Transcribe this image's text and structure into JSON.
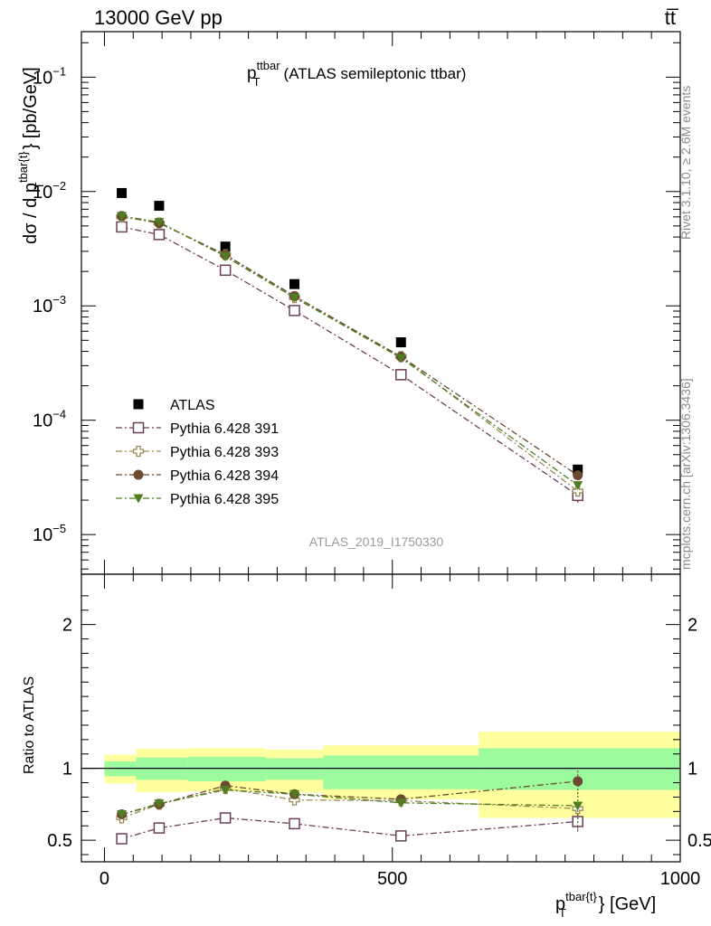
{
  "header": {
    "left": "13000 GeV pp",
    "right": "tt̅"
  },
  "side_labels": {
    "rivet": "Rivet 3.1.10, ≥ 2.6M events",
    "mcplots": "mcplots.cern.ch [arXiv:1306.3436]"
  },
  "chart_data": [
    {
      "type": "scatter",
      "panel": "main",
      "title_main": "p",
      "title_sup": "ttbar",
      "title_sub": "T",
      "title_rest": "(ATLAS semileptonic ttbar)",
      "ylabel": "dσ / d p_T^{tbar{t}} [pb/GeV]",
      "ylabel_main": "dσ / d p",
      "ylabel_sup": "tbar{t}",
      "ylabel_sub": "T",
      "ylabel_unit": "} [pb/GeV]",
      "yscale": "log",
      "ylim": [
        4.5e-06,
        0.25
      ],
      "xlim": [
        -40,
        1000
      ],
      "watermark": "ATLAS_2019_I1750330",
      "y_ticks": [
        {
          "value": 0.1,
          "mant": "10",
          "exp": "−1"
        },
        {
          "value": 0.01,
          "mant": "10",
          "exp": "−2"
        },
        {
          "value": 0.001,
          "mant": "10",
          "exp": "−3"
        },
        {
          "value": 0.0001,
          "mant": "10",
          "exp": "−4"
        },
        {
          "value": 1e-05,
          "mant": "10",
          "exp": "−5"
        }
      ],
      "x": [
        30,
        95,
        210,
        330,
        515,
        822
      ],
      "series": [
        {
          "name": "ATLAS",
          "marker": "square-filled",
          "color": "#000000",
          "line": false,
          "values": [
            0.0097,
            0.0075,
            0.0033,
            0.00155,
            0.00048,
            3.7e-05
          ]
        },
        {
          "name": "Pythia 6.428 391",
          "marker": "square-open",
          "color": "#6b3f57",
          "line": true,
          "values": [
            0.0049,
            0.0042,
            0.00205,
            0.00091,
            0.00025,
            2.2e-05
          ],
          "err_low": [
            0,
            0,
            0,
            0,
            0,
            3e-06
          ],
          "err_high": [
            0,
            0,
            0,
            0,
            0,
            3e-06
          ]
        },
        {
          "name": "Pythia 6.428 393",
          "marker": "cross-open",
          "color": "#9a8a55",
          "line": true,
          "values": [
            0.006,
            0.0053,
            0.0028,
            0.00118,
            0.00036,
            2.4e-05
          ]
        },
        {
          "name": "Pythia 6.428 394",
          "marker": "circle-filled",
          "color": "#6b4a30",
          "line": true,
          "values": [
            0.0061,
            0.0053,
            0.0028,
            0.00122,
            0.00036,
            3.3e-05
          ]
        },
        {
          "name": "Pythia 6.428 395",
          "marker": "triangle-down-filled",
          "color": "#4e7d22",
          "line": true,
          "values": [
            0.0061,
            0.0054,
            0.0027,
            0.00118,
            0.00035,
            2.7e-05
          ]
        }
      ]
    },
    {
      "type": "scatter",
      "panel": "ratio",
      "ylabel": "Ratio to ATLAS",
      "xlabel": "p_T^{tbar{t}} [GeV]",
      "xlabel_main": "p",
      "xlabel_sup": "tbar{t}",
      "xlabel_sub": "T",
      "xlabel_unit": "} [GeV]",
      "ylim": [
        0.35,
        2.35
      ],
      "xlim": [
        -40,
        1000
      ],
      "reference": 1,
      "y_ticks": [
        {
          "value": 0.5,
          "label": "0.5"
        },
        {
          "value": 1,
          "label": "1"
        },
        {
          "value": 2,
          "label": "2"
        }
      ],
      "x_ticks": [
        {
          "value": 0,
          "label": "0"
        },
        {
          "value": 500,
          "label": "500"
        },
        {
          "value": 1000,
          "label": "1000"
        }
      ],
      "bands": [
        {
          "x0": 0,
          "x1": 55,
          "inner": [
            0.945,
            1.048
          ],
          "outer": [
            0.895,
            1.095
          ]
        },
        {
          "x0": 55,
          "x1": 145,
          "inner": [
            0.92,
            1.075
          ],
          "outer": [
            0.835,
            1.135
          ]
        },
        {
          "x0": 145,
          "x1": 280,
          "inner": [
            0.91,
            1.08
          ],
          "outer": [
            0.84,
            1.14
          ]
        },
        {
          "x0": 280,
          "x1": 380,
          "inner": [
            0.92,
            1.07
          ],
          "outer": [
            0.83,
            1.13
          ]
        },
        {
          "x0": 380,
          "x1": 650,
          "inner": [
            0.855,
            1.09
          ],
          "outer": [
            0.785,
            1.16
          ]
        },
        {
          "x0": 650,
          "x1": 1000,
          "inner": [
            0.85,
            1.14
          ],
          "outer": [
            0.655,
            1.255
          ]
        }
      ],
      "x": [
        30,
        95,
        210,
        330,
        515,
        822
      ],
      "series": [
        {
          "name": "Pythia 6.428 391",
          "marker": "square-open",
          "color": "#6b3f57",
          "values": [
            0.51,
            0.585,
            0.655,
            0.615,
            0.53,
            0.63
          ],
          "err": [
            0,
            0.01,
            0.01,
            0.015,
            0.025,
            0.07
          ]
        },
        {
          "name": "Pythia 6.428 393",
          "marker": "cross-open",
          "color": "#9a8a55",
          "values": [
            0.655,
            0.75,
            0.86,
            0.78,
            0.775,
            0.72
          ],
          "err": [
            0,
            0.01,
            0.01,
            0.02,
            0.025,
            0.15
          ]
        },
        {
          "name": "Pythia 6.428 394",
          "marker": "circle-filled",
          "color": "#6b4a30",
          "values": [
            0.68,
            0.75,
            0.88,
            0.82,
            0.785,
            0.91
          ],
          "err": [
            0,
            0.01,
            0.01,
            0.02,
            0.03,
            0.09
          ]
        },
        {
          "name": "Pythia 6.428 395",
          "marker": "triangle-down-filled",
          "color": "#4e7d22",
          "values": [
            0.68,
            0.755,
            0.85,
            0.82,
            0.76,
            0.74
          ],
          "err": [
            0,
            0.01,
            0.01,
            0.02,
            0.03,
            0.12
          ]
        }
      ]
    }
  ]
}
